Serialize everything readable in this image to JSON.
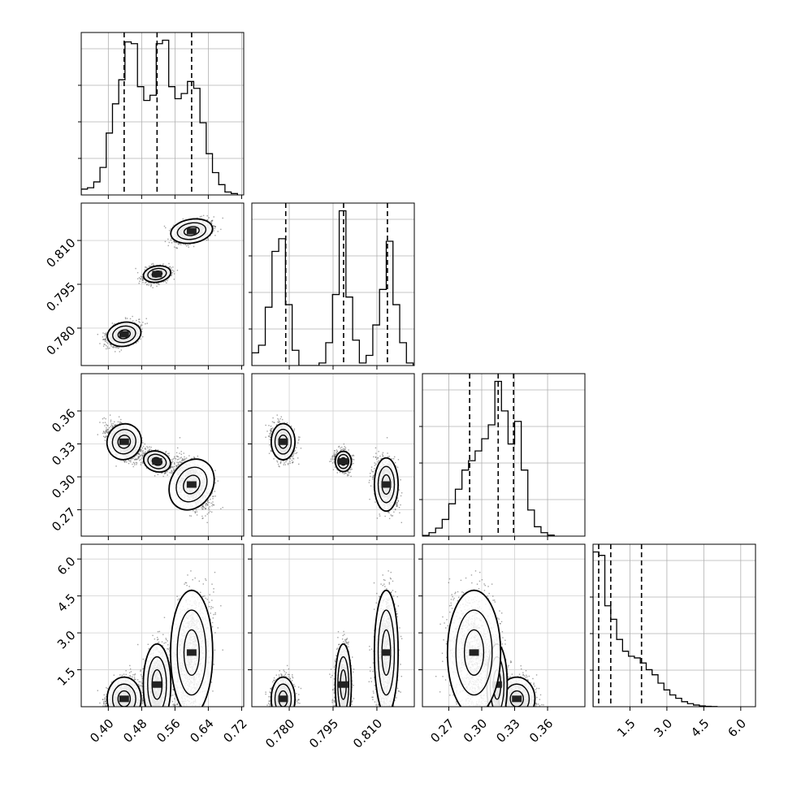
{
  "chart_data": {
    "type": "corner",
    "title": "",
    "parameters": [
      {
        "range": [
          0.335,
          0.725
        ],
        "ticks": [
          "0.40",
          "0.48",
          "0.56",
          "0.64",
          "0.72"
        ],
        "tick_values": [
          0.4,
          0.48,
          0.56,
          0.64,
          0.72
        ]
      },
      {
        "range": [
          0.7672,
          0.8228
        ],
        "ticks": [
          "0.780",
          "0.795",
          "0.810"
        ],
        "tick_values": [
          0.78,
          0.795,
          0.81
        ]
      },
      {
        "range": [
          0.246,
          0.394
        ],
        "ticks": [
          "0.27",
          "0.30",
          "0.33",
          "0.36"
        ],
        "tick_values": [
          0.27,
          0.3,
          0.33,
          0.36
        ]
      },
      {
        "range": [
          0.0,
          6.6
        ],
        "ticks": [
          "1.5",
          "3.0",
          "4.5",
          "6.0"
        ],
        "tick_values": [
          1.5,
          3.0,
          4.5,
          6.0
        ]
      }
    ],
    "histograms": [
      {
        "param": 0,
        "quantiles": [
          0.438,
          0.517,
          0.6
        ],
        "bins": [
          [
            0.335,
            0.34
          ],
          [
            0.35,
            0.42
          ],
          [
            0.365,
            0.76
          ],
          [
            0.38,
            1.6
          ],
          [
            0.395,
            3.6
          ],
          [
            0.41,
            5.3
          ],
          [
            0.425,
            6.7
          ],
          [
            0.44,
            8.9
          ],
          [
            0.455,
            8.8
          ],
          [
            0.47,
            6.3
          ],
          [
            0.485,
            5.5
          ],
          [
            0.5,
            5.8
          ],
          [
            0.515,
            8.8
          ],
          [
            0.53,
            9.0
          ],
          [
            0.545,
            6.3
          ],
          [
            0.56,
            5.6
          ],
          [
            0.575,
            5.9
          ],
          [
            0.59,
            6.6
          ],
          [
            0.605,
            6.2
          ],
          [
            0.62,
            4.2
          ],
          [
            0.635,
            2.4
          ],
          [
            0.65,
            1.3
          ],
          [
            0.665,
            0.6
          ],
          [
            0.68,
            0.17
          ],
          [
            0.695,
            0.08
          ]
        ]
      },
      {
        "param": 1,
        "quantiles": [
          0.7788,
          0.7986,
          0.8136
        ],
        "bins": [
          [
            0.7672,
            0.5
          ],
          [
            0.7695,
            0.8
          ],
          [
            0.7718,
            2.3
          ],
          [
            0.7741,
            4.5
          ],
          [
            0.7764,
            5.0
          ],
          [
            0.7787,
            2.4
          ],
          [
            0.781,
            0.6
          ],
          [
            0.7833,
            0
          ],
          [
            0.7856,
            0
          ],
          [
            0.7879,
            0
          ],
          [
            0.7902,
            0.1
          ],
          [
            0.7925,
            0.9
          ],
          [
            0.7948,
            2.8
          ],
          [
            0.7971,
            6.1
          ],
          [
            0.7994,
            2.7
          ],
          [
            0.8017,
            1.0
          ],
          [
            0.804,
            0.1
          ],
          [
            0.8063,
            0.4
          ],
          [
            0.8086,
            1.6
          ],
          [
            0.8109,
            3.0
          ],
          [
            0.8132,
            4.9
          ],
          [
            0.8155,
            2.4
          ],
          [
            0.8178,
            0.9
          ],
          [
            0.8201,
            0.1
          ]
        ]
      },
      {
        "param": 2,
        "quantiles": [
          0.289,
          0.315,
          0.329
        ],
        "bins": [
          [
            0.246,
            0.02
          ],
          [
            0.252,
            0.1
          ],
          [
            0.258,
            0.23
          ],
          [
            0.264,
            0.48
          ],
          [
            0.27,
            0.93
          ],
          [
            0.276,
            1.35
          ],
          [
            0.282,
            1.9
          ],
          [
            0.288,
            2.17
          ],
          [
            0.294,
            2.45
          ],
          [
            0.3,
            2.8
          ],
          [
            0.306,
            3.2
          ],
          [
            0.312,
            4.45
          ],
          [
            0.318,
            3.6
          ],
          [
            0.324,
            2.65
          ],
          [
            0.33,
            3.3
          ],
          [
            0.336,
            1.9
          ],
          [
            0.342,
            0.75
          ],
          [
            0.348,
            0.27
          ],
          [
            0.354,
            0.1
          ],
          [
            0.36,
            0.03
          ]
        ]
      },
      {
        "param": 3,
        "quantiles": [
          0.23,
          0.72,
          1.97
        ],
        "bins": [
          [
            0.0,
            9.2
          ],
          [
            0.24,
            9.0
          ],
          [
            0.48,
            6.0
          ],
          [
            0.72,
            5.2
          ],
          [
            0.96,
            4.0
          ],
          [
            1.2,
            3.3
          ],
          [
            1.44,
            3.0
          ],
          [
            1.68,
            2.9
          ],
          [
            1.92,
            2.6
          ],
          [
            2.16,
            2.2
          ],
          [
            2.4,
            1.9
          ],
          [
            2.64,
            1.4
          ],
          [
            2.88,
            1.0
          ],
          [
            3.12,
            0.7
          ],
          [
            3.36,
            0.5
          ],
          [
            3.6,
            0.3
          ],
          [
            3.84,
            0.18
          ],
          [
            4.08,
            0.1
          ],
          [
            4.32,
            0.05
          ],
          [
            4.56,
            0.02
          ],
          [
            4.8,
            0.01
          ]
        ]
      }
    ],
    "clusters": [
      {
        "mean": [
          0.438,
          0.7779,
          0.332,
          0.32
        ],
        "sd": [
          0.0185,
          0.00185,
          0.0075,
          0.4
        ],
        "spread3": [
          0.0,
          0.0,
          0.0,
          0.0
        ]
      },
      {
        "mean": [
          0.517,
          0.7985,
          0.314,
          0.9
        ],
        "sd": [
          0.015,
          0.00125,
          0.0042,
          0.75
        ],
        "spread3": [
          0.0,
          0.0,
          0.0,
          0.0
        ]
      },
      {
        "mean": [
          0.6,
          0.8132,
          0.293,
          2.2
        ],
        "sd": [
          0.023,
          0.00185,
          0.011,
          1.15
        ],
        "spread3": [
          0.0,
          0.0,
          0.0,
          0.0
        ]
      }
    ],
    "grid": true,
    "contour_color": "#000000",
    "point_color": "#666666"
  }
}
